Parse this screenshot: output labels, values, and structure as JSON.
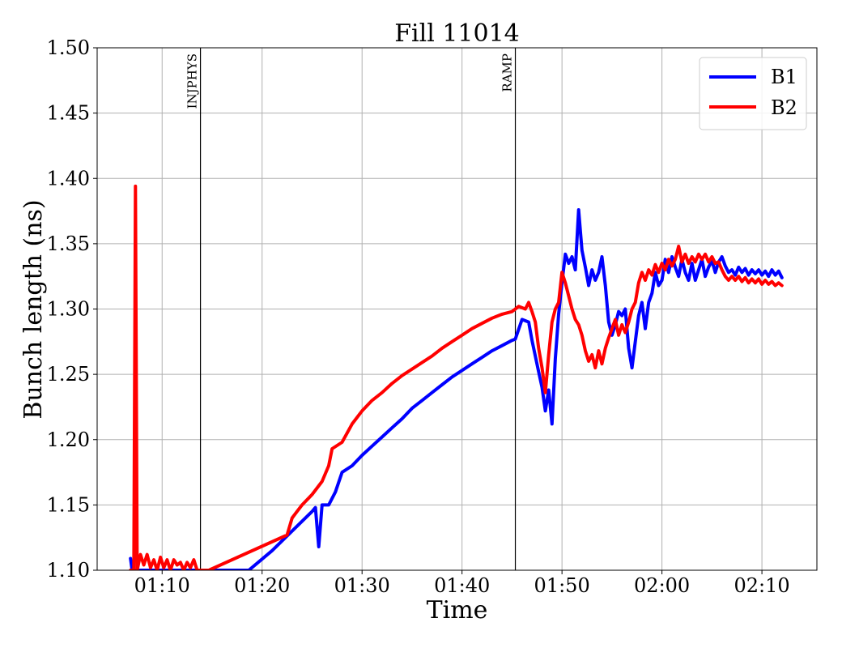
{
  "chart_data": {
    "type": "line",
    "title": "Fill 11014",
    "xlabel": "Time",
    "ylabel": "Bunch length (ns)",
    "xlim": [
      "01:03:30",
      "02:15:30"
    ],
    "ylim": [
      1.1,
      1.5
    ],
    "x_ticks": [
      "01:10",
      "01:20",
      "01:30",
      "01:40",
      "01:50",
      "02:00",
      "02:10"
    ],
    "y_ticks": [
      "1.10",
      "1.15",
      "1.20",
      "1.25",
      "1.30",
      "1.35",
      "1.40",
      "1.45",
      "1.50"
    ],
    "grid": true,
    "legend": "top-right",
    "markers": [
      {
        "label": "INJPHYS",
        "x": "01:13:50"
      },
      {
        "label": "RAMP",
        "x": "01:45:20"
      }
    ],
    "series": [
      {
        "name": "B1",
        "color": "#0000ff",
        "points": [
          [
            "01:06:50",
            1.109
          ],
          [
            "01:07:00",
            1.1
          ],
          [
            "01:18:40",
            1.1
          ],
          [
            "01:21:00",
            1.115
          ],
          [
            "01:23:00",
            1.13
          ],
          [
            "01:25:00",
            1.145
          ],
          [
            "01:25:20",
            1.148
          ],
          [
            "01:25:40",
            1.118
          ],
          [
            "01:26:00",
            1.15
          ],
          [
            "01:26:40",
            1.15
          ],
          [
            "01:27:20",
            1.16
          ],
          [
            "01:28:00",
            1.175
          ],
          [
            "01:29:00",
            1.18
          ],
          [
            "01:30:00",
            1.188
          ],
          [
            "01:31:00",
            1.195
          ],
          [
            "01:32:00",
            1.202
          ],
          [
            "01:33:00",
            1.209
          ],
          [
            "01:34:00",
            1.216
          ],
          [
            "01:35:00",
            1.224
          ],
          [
            "01:36:00",
            1.23
          ],
          [
            "01:37:00",
            1.236
          ],
          [
            "01:38:00",
            1.242
          ],
          [
            "01:39:00",
            1.248
          ],
          [
            "01:40:00",
            1.253
          ],
          [
            "01:41:00",
            1.258
          ],
          [
            "01:42:00",
            1.263
          ],
          [
            "01:43:00",
            1.268
          ],
          [
            "01:44:00",
            1.272
          ],
          [
            "01:45:00",
            1.276
          ],
          [
            "01:45:20",
            1.277
          ],
          [
            "01:46:00",
            1.292
          ],
          [
            "01:46:40",
            1.29
          ],
          [
            "01:47:00",
            1.276
          ],
          [
            "01:47:40",
            1.252
          ],
          [
            "01:48:00",
            1.24
          ],
          [
            "01:48:20",
            1.222
          ],
          [
            "01:48:40",
            1.238
          ],
          [
            "01:49:00",
            1.212
          ],
          [
            "01:49:20",
            1.262
          ],
          [
            "01:49:40",
            1.296
          ],
          [
            "01:50:00",
            1.32
          ],
          [
            "01:50:20",
            1.342
          ],
          [
            "01:50:40",
            1.335
          ],
          [
            "01:51:00",
            1.34
          ],
          [
            "01:51:20",
            1.33
          ],
          [
            "01:51:40",
            1.376
          ],
          [
            "01:52:00",
            1.345
          ],
          [
            "01:52:20",
            1.332
          ],
          [
            "01:52:40",
            1.318
          ],
          [
            "01:53:00",
            1.33
          ],
          [
            "01:53:20",
            1.322
          ],
          [
            "01:53:40",
            1.328
          ],
          [
            "01:54:00",
            1.34
          ],
          [
            "01:54:20",
            1.318
          ],
          [
            "01:54:40",
            1.29
          ],
          [
            "01:55:00",
            1.28
          ],
          [
            "01:55:20",
            1.288
          ],
          [
            "01:55:40",
            1.298
          ],
          [
            "01:56:00",
            1.295
          ],
          [
            "01:56:20",
            1.3
          ],
          [
            "01:56:40",
            1.27
          ],
          [
            "01:57:00",
            1.255
          ],
          [
            "01:57:20",
            1.275
          ],
          [
            "01:57:40",
            1.295
          ],
          [
            "01:58:00",
            1.305
          ],
          [
            "01:58:20",
            1.285
          ],
          [
            "01:58:40",
            1.305
          ],
          [
            "01:59:00",
            1.312
          ],
          [
            "01:59:20",
            1.328
          ],
          [
            "01:59:40",
            1.318
          ],
          [
            "02:00:00",
            1.322
          ],
          [
            "02:00:20",
            1.338
          ],
          [
            "02:00:40",
            1.328
          ],
          [
            "02:01:00",
            1.34
          ],
          [
            "02:01:20",
            1.332
          ],
          [
            "02:01:40",
            1.325
          ],
          [
            "02:02:00",
            1.338
          ],
          [
            "02:02:20",
            1.328
          ],
          [
            "02:02:40",
            1.322
          ],
          [
            "02:03:00",
            1.335
          ],
          [
            "02:03:20",
            1.322
          ],
          [
            "02:03:40",
            1.33
          ],
          [
            "02:04:00",
            1.338
          ],
          [
            "02:04:20",
            1.325
          ],
          [
            "02:04:40",
            1.332
          ],
          [
            "02:05:00",
            1.337
          ],
          [
            "02:05:20",
            1.328
          ],
          [
            "02:05:40",
            1.336
          ],
          [
            "02:06:00",
            1.34
          ],
          [
            "02:06:20",
            1.333
          ],
          [
            "02:06:40",
            1.328
          ],
          [
            "02:07:00",
            1.33
          ],
          [
            "02:07:20",
            1.326
          ],
          [
            "02:07:40",
            1.332
          ],
          [
            "02:08:00",
            1.328
          ],
          [
            "02:08:20",
            1.331
          ],
          [
            "02:08:40",
            1.326
          ],
          [
            "02:09:00",
            1.33
          ],
          [
            "02:09:20",
            1.327
          ],
          [
            "02:09:40",
            1.33
          ],
          [
            "02:10:00",
            1.326
          ],
          [
            "02:10:20",
            1.329
          ],
          [
            "02:10:40",
            1.325
          ],
          [
            "02:11:00",
            1.33
          ],
          [
            "02:11:20",
            1.326
          ],
          [
            "02:11:40",
            1.329
          ],
          [
            "02:12:00",
            1.324
          ]
        ]
      },
      {
        "name": "B2",
        "color": "#ff0000",
        "points": [
          [
            "01:06:50",
            1.1
          ],
          [
            "01:07:10",
            1.1
          ],
          [
            "01:07:20",
            1.394
          ],
          [
            "01:07:30",
            1.1
          ],
          [
            "01:07:50",
            1.112
          ],
          [
            "01:08:10",
            1.104
          ],
          [
            "01:08:30",
            1.112
          ],
          [
            "01:08:50",
            1.102
          ],
          [
            "01:09:10",
            1.108
          ],
          [
            "01:09:30",
            1.1
          ],
          [
            "01:09:50",
            1.11
          ],
          [
            "01:10:10",
            1.102
          ],
          [
            "01:10:30",
            1.108
          ],
          [
            "01:10:50",
            1.1
          ],
          [
            "01:11:10",
            1.108
          ],
          [
            "01:11:30",
            1.104
          ],
          [
            "01:11:50",
            1.106
          ],
          [
            "01:12:10",
            1.1
          ],
          [
            "01:12:30",
            1.106
          ],
          [
            "01:12:50",
            1.102
          ],
          [
            "01:13:10",
            1.108
          ],
          [
            "01:13:30",
            1.1
          ],
          [
            "01:14:40",
            1.1
          ],
          [
            "01:22:30",
            1.127
          ],
          [
            "01:23:00",
            1.14
          ],
          [
            "01:23:30",
            1.145
          ],
          [
            "01:24:00",
            1.15
          ],
          [
            "01:25:00",
            1.158
          ],
          [
            "01:26:00",
            1.168
          ],
          [
            "01:26:40",
            1.18
          ],
          [
            "01:27:00",
            1.193
          ],
          [
            "01:28:00",
            1.198
          ],
          [
            "01:29:00",
            1.212
          ],
          [
            "01:30:00",
            1.222
          ],
          [
            "01:31:00",
            1.23
          ],
          [
            "01:32:00",
            1.236
          ],
          [
            "01:33:00",
            1.243
          ],
          [
            "01:34:00",
            1.249
          ],
          [
            "01:35:00",
            1.254
          ],
          [
            "01:36:00",
            1.259
          ],
          [
            "01:37:00",
            1.264
          ],
          [
            "01:38:00",
            1.27
          ],
          [
            "01:39:00",
            1.275
          ],
          [
            "01:40:00",
            1.28
          ],
          [
            "01:41:00",
            1.285
          ],
          [
            "01:42:00",
            1.289
          ],
          [
            "01:43:00",
            1.293
          ],
          [
            "01:44:00",
            1.296
          ],
          [
            "01:45:00",
            1.298
          ],
          [
            "01:45:40",
            1.302
          ],
          [
            "01:46:20",
            1.3
          ],
          [
            "01:46:40",
            1.305
          ],
          [
            "01:47:00",
            1.298
          ],
          [
            "01:47:20",
            1.29
          ],
          [
            "01:47:40",
            1.27
          ],
          [
            "01:48:00",
            1.255
          ],
          [
            "01:48:20",
            1.236
          ],
          [
            "01:48:40",
            1.265
          ],
          [
            "01:49:00",
            1.29
          ],
          [
            "01:49:20",
            1.3
          ],
          [
            "01:49:40",
            1.305
          ],
          [
            "01:50:00",
            1.328
          ],
          [
            "01:50:20",
            1.32
          ],
          [
            "01:50:40",
            1.31
          ],
          [
            "01:51:00",
            1.3
          ],
          [
            "01:51:20",
            1.292
          ],
          [
            "01:51:40",
            1.288
          ],
          [
            "01:52:00",
            1.28
          ],
          [
            "01:52:20",
            1.268
          ],
          [
            "01:52:40",
            1.26
          ],
          [
            "01:53:00",
            1.265
          ],
          [
            "01:53:20",
            1.255
          ],
          [
            "01:53:40",
            1.268
          ],
          [
            "01:54:00",
            1.258
          ],
          [
            "01:54:20",
            1.27
          ],
          [
            "01:54:40",
            1.278
          ],
          [
            "01:55:00",
            1.285
          ],
          [
            "01:55:20",
            1.292
          ],
          [
            "01:55:40",
            1.28
          ],
          [
            "01:56:00",
            1.288
          ],
          [
            "01:56:20",
            1.282
          ],
          [
            "01:56:40",
            1.29
          ],
          [
            "01:57:00",
            1.3
          ],
          [
            "01:57:20",
            1.305
          ],
          [
            "01:57:40",
            1.32
          ],
          [
            "01:58:00",
            1.328
          ],
          [
            "01:58:20",
            1.322
          ],
          [
            "01:58:40",
            1.33
          ],
          [
            "01:59:00",
            1.326
          ],
          [
            "01:59:20",
            1.334
          ],
          [
            "01:59:40",
            1.328
          ],
          [
            "02:00:00",
            1.335
          ],
          [
            "02:00:20",
            1.33
          ],
          [
            "02:00:40",
            1.338
          ],
          [
            "02:01:00",
            1.333
          ],
          [
            "02:01:20",
            1.338
          ],
          [
            "02:01:40",
            1.348
          ],
          [
            "02:02:00",
            1.336
          ],
          [
            "02:02:20",
            1.342
          ],
          [
            "02:02:40",
            1.335
          ],
          [
            "02:03:00",
            1.34
          ],
          [
            "02:03:20",
            1.336
          ],
          [
            "02:03:40",
            1.342
          ],
          [
            "02:04:00",
            1.338
          ],
          [
            "02:04:20",
            1.342
          ],
          [
            "02:04:40",
            1.336
          ],
          [
            "02:05:00",
            1.34
          ],
          [
            "02:05:20",
            1.335
          ],
          [
            "02:05:40",
            1.336
          ],
          [
            "02:06:00",
            1.33
          ],
          [
            "02:06:20",
            1.325
          ],
          [
            "02:06:40",
            1.322
          ],
          [
            "02:07:00",
            1.325
          ],
          [
            "02:07:20",
            1.322
          ],
          [
            "02:07:40",
            1.325
          ],
          [
            "02:08:00",
            1.321
          ],
          [
            "02:08:20",
            1.324
          ],
          [
            "02:08:40",
            1.32
          ],
          [
            "02:09:00",
            1.323
          ],
          [
            "02:09:20",
            1.32
          ],
          [
            "02:09:40",
            1.323
          ],
          [
            "02:10:00",
            1.319
          ],
          [
            "02:10:20",
            1.322
          ],
          [
            "02:10:40",
            1.319
          ],
          [
            "02:11:00",
            1.321
          ],
          [
            "02:11:20",
            1.318
          ],
          [
            "02:11:40",
            1.32
          ],
          [
            "02:12:00",
            1.318
          ]
        ]
      }
    ]
  }
}
